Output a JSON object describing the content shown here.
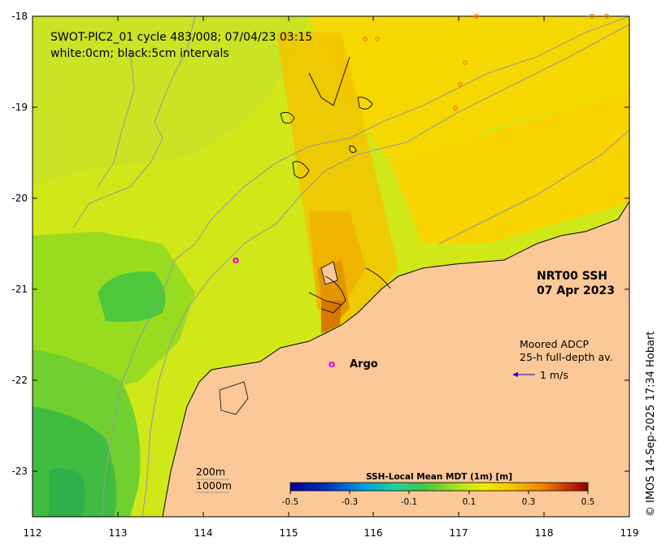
{
  "title_line1": "SWOT-PIC2_01 cycle 483/008; 07/04/23 03:15",
  "title_line2": "white:0cm; black:5cm intervals",
  "product_line1": "NRT00 SSH",
  "product_line2": "07 Apr 2023",
  "adcp_line1": "Moored ADCP",
  "adcp_line2": "25-h full-depth av.",
  "adcp_scale_label": "1 m/s",
  "argo_label": "Argo",
  "argo_marker": "o",
  "depth_200": "200m",
  "depth_1000": "1000m",
  "credit": "© IMOS 14-Sep-2025 17:34 Hobart",
  "colorbar": {
    "title": "SSH-Local Mean MDT (1m) [m]",
    "tick_labels": [
      "-0.5",
      "-0.3",
      "-0.1",
      "0.1",
      "0.3",
      "0.5"
    ],
    "range": [
      -0.5,
      0.5
    ]
  },
  "axes": {
    "x_ticks": [
      "112",
      "113",
      "114",
      "115",
      "116",
      "117",
      "118",
      "119"
    ],
    "y_ticks": [
      "-18",
      "-19",
      "-20",
      "-21",
      "-22",
      "-23"
    ],
    "x_range": [
      112,
      119
    ],
    "y_range": [
      -23.5,
      -18
    ]
  },
  "colors": {
    "land": "#fdc897",
    "coast": "#000000",
    "isobath": "#9a9a9a",
    "argo": "#e000e0",
    "adcp_arrow": "#0000cc"
  }
}
